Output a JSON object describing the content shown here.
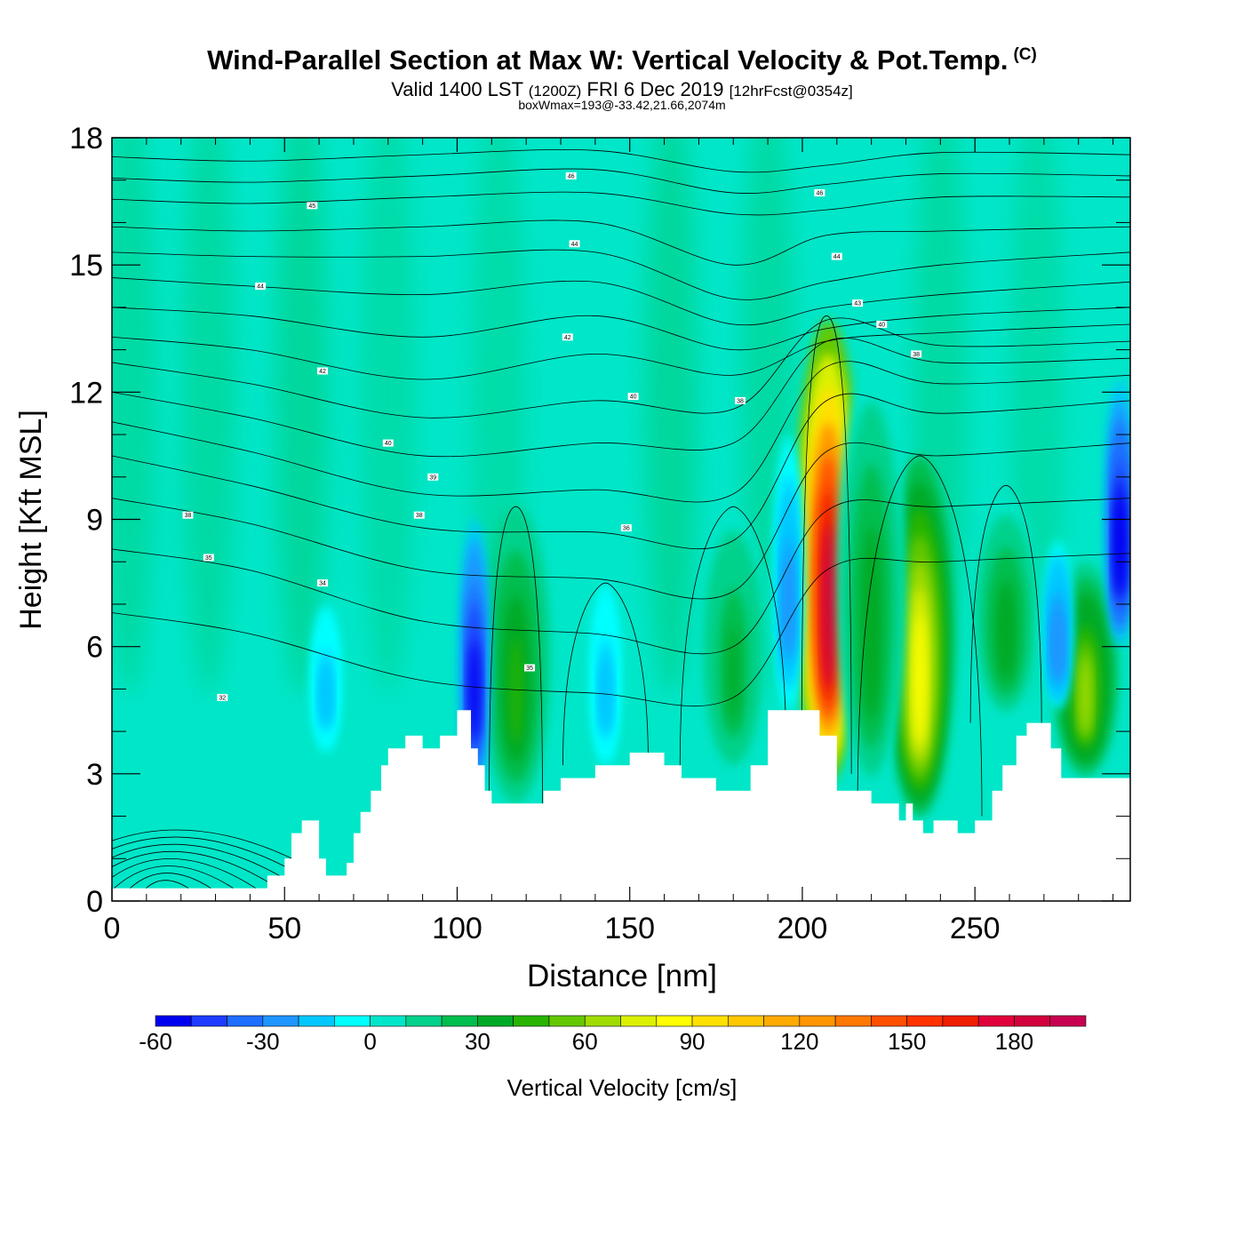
{
  "header": {
    "title": "Wind-Parallel Section at Max W: Vertical Velocity & Pot.Temp.",
    "copyright_mark": "(C)",
    "valid_prefix": "Valid 1400 LST",
    "valid_utc": "(1200Z)",
    "valid_date": "FRI 6 Dec 2019",
    "forecast": "[12hrFcst@0354z]",
    "box_info": "boxWmax=193@-33.42,21.66,2074m"
  },
  "chart_data": {
    "type": "heatmap",
    "xlabel": "Distance [nm]",
    "ylabel": "Height [Kft MSL]",
    "xlim": [
      0,
      295
    ],
    "ylim": [
      0,
      18
    ],
    "x_ticks": [
      0,
      50,
      100,
      150,
      200,
      250
    ],
    "y_ticks": [
      0,
      3,
      6,
      9,
      12,
      15,
      18
    ],
    "colorbar": {
      "label": "Vertical Velocity [cm/s]",
      "range": [
        -60,
        200
      ],
      "step": 10,
      "tick_labels": [
        -60,
        -30,
        0,
        30,
        60,
        90,
        120,
        150,
        180
      ],
      "colors": [
        "#0000f0",
        "#1e3cff",
        "#1e6eff",
        "#1e96ff",
        "#00c8ff",
        "#00ffff",
        "#00e6c8",
        "#00d28c",
        "#00be50",
        "#00aa28",
        "#28b400",
        "#64c800",
        "#a0dc00",
        "#dcf000",
        "#ffff00",
        "#ffe100",
        "#ffc800",
        "#ffaa00",
        "#ff9600",
        "#ff7800",
        "#ff5000",
        "#ff3200",
        "#f01e00",
        "#e1003c",
        "#d2003c",
        "#c80050"
      ]
    },
    "terrain_kft": {
      "x": [
        0,
        10,
        20,
        30,
        40,
        43,
        45,
        50,
        52,
        55,
        58,
        60,
        62,
        65,
        68,
        70,
        72,
        75,
        78,
        80,
        85,
        88,
        90,
        95,
        100,
        102,
        104,
        106,
        108,
        110,
        112,
        115,
        120,
        125,
        130,
        135,
        140,
        145,
        150,
        155,
        160,
        165,
        170,
        175,
        180,
        185,
        190,
        195,
        200,
        203,
        205,
        210,
        215,
        220,
        225,
        228,
        230,
        232,
        235,
        238,
        240,
        245,
        250,
        255,
        258,
        262,
        265,
        270,
        272,
        275,
        280,
        285,
        290,
        295
      ],
      "height": [
        0.3,
        0.3,
        0.3,
        0.3,
        0.3,
        0.3,
        0.6,
        1.0,
        1.6,
        1.9,
        1.9,
        1.0,
        0.6,
        0.6,
        0.9,
        1.6,
        2.1,
        2.6,
        3.2,
        3.6,
        3.9,
        3.9,
        3.6,
        3.9,
        4.5,
        4.5,
        3.6,
        3.2,
        2.6,
        2.3,
        2.3,
        2.3,
        2.3,
        2.6,
        2.9,
        2.9,
        3.2,
        3.2,
        3.5,
        3.5,
        3.2,
        2.9,
        2.9,
        2.6,
        2.6,
        3.2,
        4.5,
        4.5,
        4.5,
        4.5,
        3.9,
        2.6,
        2.6,
        2.3,
        2.3,
        1.9,
        2.3,
        1.9,
        1.6,
        1.9,
        1.9,
        1.6,
        1.9,
        2.6,
        3.2,
        3.9,
        4.2,
        4.2,
        3.6,
        2.9,
        2.9,
        2.9,
        2.9,
        2.9
      ]
    },
    "velocity_features": [
      {
        "x": 207.5,
        "z_bottom": 2.8,
        "z_top": 13.7,
        "w_max": 193
      },
      {
        "x": 234,
        "z_bottom": 2.0,
        "z_top": 10.5,
        "w_max": 80
      },
      {
        "x": 259,
        "z_bottom": 4.3,
        "z_top": 9.5,
        "w_max": 35
      },
      {
        "x": 220,
        "z_bottom": 2.6,
        "z_top": 12.5,
        "w_max": 35
      },
      {
        "x": 117,
        "z_bottom": 2.3,
        "z_top": 9.3,
        "w_max": 45
      },
      {
        "x": 282,
        "z_bottom": 2.9,
        "z_top": 8.0,
        "w_max": 60
      },
      {
        "x": 180,
        "z_bottom": 3.0,
        "z_top": 9.2,
        "w_max": 30
      },
      {
        "x": 105,
        "z_bottom": 2.5,
        "z_top": 9.0,
        "w_min": -55
      },
      {
        "x": 292,
        "z_bottom": 6.0,
        "z_top": 12.3,
        "w_min": -60
      },
      {
        "x": 274,
        "z_bottom": 4.5,
        "z_top": 8.5,
        "w_min": -30
      },
      {
        "x": 196,
        "z_bottom": 4.5,
        "z_top": 11.0,
        "w_min": -25
      },
      {
        "x": 143,
        "z_bottom": 3.2,
        "z_top": 7.5,
        "w_min": -15
      },
      {
        "x": 62,
        "z_bottom": 3.5,
        "z_top": 7.0,
        "w_min": -15
      }
    ],
    "theta_contours": [
      {
        "label": "46",
        "y": [
          17.55,
          17.45,
          17.6,
          17.7,
          17.2,
          17.35,
          17.65,
          17.6
        ]
      },
      {
        "label": "45",
        "y": [
          17.05,
          16.95,
          17.1,
          17.25,
          16.7,
          16.9,
          17.15,
          17.1
        ]
      },
      {
        "label": "44",
        "y": [
          16.55,
          16.45,
          16.6,
          16.7,
          16.2,
          16.3,
          16.6,
          16.6
        ]
      },
      {
        "label": "43",
        "y": [
          15.9,
          15.8,
          15.9,
          16.0,
          15.0,
          15.7,
          15.8,
          15.9
        ]
      },
      {
        "label": "42",
        "y": [
          15.3,
          15.2,
          15.2,
          15.3,
          14.2,
          14.6,
          15.0,
          15.3
        ]
      },
      {
        "label": "41",
        "y": [
          14.7,
          14.5,
          14.3,
          14.6,
          13.6,
          14.0,
          14.3,
          14.6
        ]
      },
      {
        "label": "40",
        "y": [
          14.0,
          13.8,
          13.3,
          13.8,
          13.0,
          13.5,
          13.8,
          14.0
        ]
      },
      {
        "label": "39",
        "y": [
          13.3,
          13.0,
          12.3,
          12.9,
          12.4,
          13.2,
          13.4,
          13.6
        ]
      },
      {
        "label": "38",
        "y": [
          12.7,
          12.2,
          11.4,
          11.8,
          11.6,
          13.7,
          13.1,
          13.2
        ]
      },
      {
        "label": "37",
        "y": [
          12.0,
          11.4,
          10.5,
          10.8,
          10.8,
          13.2,
          12.7,
          12.8
        ]
      },
      {
        "label": "36",
        "y": [
          11.3,
          10.6,
          9.6,
          9.7,
          9.6,
          12.6,
          12.2,
          12.4
        ]
      },
      {
        "label": "35",
        "y": [
          10.5,
          9.8,
          8.8,
          8.7,
          8.5,
          11.8,
          11.5,
          11.8
        ]
      },
      {
        "label": "34",
        "y": [
          9.5,
          8.9,
          7.8,
          7.6,
          7.3,
          10.6,
          10.5,
          10.8
        ]
      },
      {
        "label": "33",
        "y": [
          8.3,
          7.8,
          6.6,
          6.3,
          6.0,
          9.2,
          9.3,
          9.5
        ]
      },
      {
        "label": "32",
        "y": [
          6.8,
          6.3,
          5.2,
          4.9,
          4.8,
          7.8,
          8.0,
          8.2
        ]
      }
    ],
    "contour_labels": [
      {
        "text": "46",
        "x": 133,
        "y": 17.1
      },
      {
        "text": "46",
        "x": 205,
        "y": 16.7
      },
      {
        "text": "45",
        "x": 58,
        "y": 16.4
      },
      {
        "text": "44",
        "x": 134,
        "y": 15.5
      },
      {
        "text": "44",
        "x": 210,
        "y": 15.2
      },
      {
        "text": "44",
        "x": 43,
        "y": 14.5
      },
      {
        "text": "43",
        "x": 216,
        "y": 14.1
      },
      {
        "text": "40",
        "x": 223,
        "y": 13.6
      },
      {
        "text": "42",
        "x": 132,
        "y": 13.3
      },
      {
        "text": "38",
        "x": 233,
        "y": 12.9
      },
      {
        "text": "42",
        "x": 61,
        "y": 12.5
      },
      {
        "text": "40",
        "x": 151,
        "y": 11.9
      },
      {
        "text": "38",
        "x": 182,
        "y": 11.8
      },
      {
        "text": "40",
        "x": 80,
        "y": 10.8
      },
      {
        "text": "39",
        "x": 93,
        "y": 10.0
      },
      {
        "text": "38",
        "x": 22,
        "y": 9.1
      },
      {
        "text": "38",
        "x": 89,
        "y": 9.1
      },
      {
        "text": "36",
        "x": 149,
        "y": 8.8
      },
      {
        "text": "35",
        "x": 28,
        "y": 8.1
      },
      {
        "text": "34",
        "x": 61,
        "y": 7.5
      },
      {
        "text": "35",
        "x": 121,
        "y": 5.5
      },
      {
        "text": "32",
        "x": 32,
        "y": 4.8
      }
    ]
  }
}
